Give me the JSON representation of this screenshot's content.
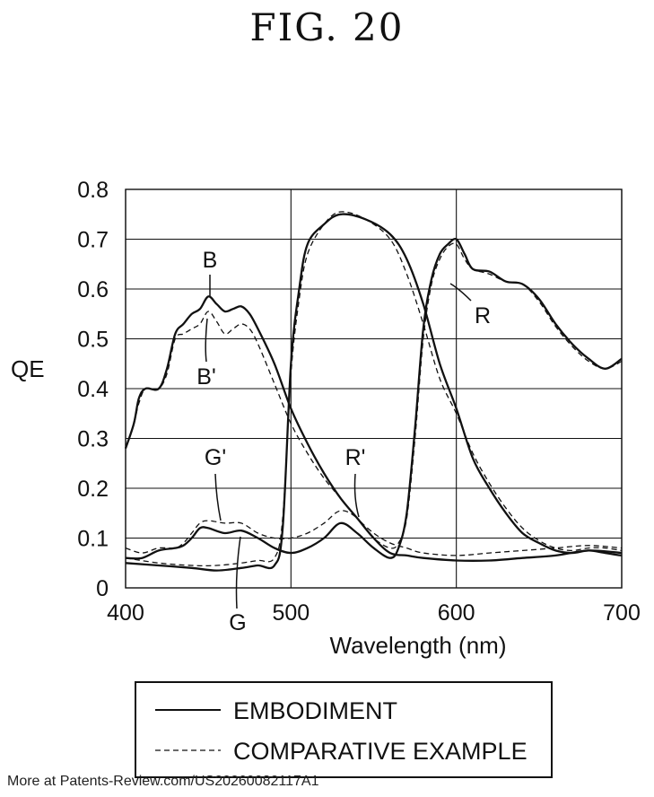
{
  "figure_title": "FIG. 20",
  "footer": "More at Patents-Review.com/US20260082117A1",
  "chart_data": {
    "type": "line",
    "title": "",
    "xlabel": "Wavelength (nm)",
    "ylabel": "QE",
    "xlim": [
      400,
      700
    ],
    "ylim": [
      0,
      0.8
    ],
    "x_ticks": [
      "400",
      "500",
      "600",
      "700"
    ],
    "y_ticks": [
      "0",
      "0.1",
      "0.2",
      "0.3",
      "0.4",
      "0.5",
      "0.6",
      "0.7",
      "0.8"
    ],
    "grid": true,
    "legend_position": "bottom",
    "legend": [
      {
        "label": "EMBODIMENT",
        "style": "solid"
      },
      {
        "label": "COMPARATIVE EXAMPLE",
        "style": "dashed"
      }
    ],
    "series": [
      {
        "label": "B",
        "style": "solid",
        "points": [
          [
            400,
            0.28
          ],
          [
            405,
            0.33
          ],
          [
            408,
            0.38
          ],
          [
            412,
            0.4
          ],
          [
            420,
            0.4
          ],
          [
            425,
            0.44
          ],
          [
            430,
            0.51
          ],
          [
            435,
            0.53
          ],
          [
            440,
            0.55
          ],
          [
            445,
            0.56
          ],
          [
            450,
            0.585
          ],
          [
            455,
            0.57
          ],
          [
            460,
            0.555
          ],
          [
            465,
            0.56
          ],
          [
            470,
            0.565
          ],
          [
            475,
            0.55
          ],
          [
            480,
            0.52
          ],
          [
            490,
            0.45
          ],
          [
            500,
            0.36
          ],
          [
            510,
            0.29
          ],
          [
            520,
            0.23
          ],
          [
            530,
            0.18
          ],
          [
            540,
            0.14
          ],
          [
            550,
            0.1
          ],
          [
            560,
            0.07
          ],
          [
            570,
            0.065
          ],
          [
            580,
            0.06
          ],
          [
            600,
            0.055
          ],
          [
            620,
            0.055
          ],
          [
            640,
            0.06
          ],
          [
            660,
            0.065
          ],
          [
            680,
            0.075
          ],
          [
            700,
            0.07
          ]
        ]
      },
      {
        "label": "B'",
        "style": "dashed",
        "points": [
          [
            400,
            0.28
          ],
          [
            405,
            0.33
          ],
          [
            408,
            0.37
          ],
          [
            412,
            0.4
          ],
          [
            420,
            0.4
          ],
          [
            425,
            0.43
          ],
          [
            430,
            0.5
          ],
          [
            435,
            0.51
          ],
          [
            440,
            0.52
          ],
          [
            445,
            0.53
          ],
          [
            450,
            0.555
          ],
          [
            455,
            0.535
          ],
          [
            460,
            0.51
          ],
          [
            465,
            0.52
          ],
          [
            470,
            0.53
          ],
          [
            475,
            0.52
          ],
          [
            480,
            0.49
          ],
          [
            490,
            0.41
          ],
          [
            500,
            0.33
          ],
          [
            510,
            0.27
          ],
          [
            520,
            0.22
          ],
          [
            530,
            0.18
          ],
          [
            540,
            0.14
          ],
          [
            550,
            0.11
          ],
          [
            560,
            0.09
          ],
          [
            570,
            0.08
          ],
          [
            580,
            0.07
          ],
          [
            600,
            0.065
          ],
          [
            620,
            0.07
          ],
          [
            640,
            0.075
          ],
          [
            660,
            0.08
          ],
          [
            680,
            0.085
          ],
          [
            700,
            0.08
          ]
        ]
      },
      {
        "label": "G",
        "style": "solid",
        "points": [
          [
            400,
            0.05
          ],
          [
            420,
            0.045
          ],
          [
            440,
            0.04
          ],
          [
            455,
            0.035
          ],
          [
            470,
            0.04
          ],
          [
            480,
            0.045
          ],
          [
            490,
            0.045
          ],
          [
            495,
            0.12
          ],
          [
            500,
            0.45
          ],
          [
            505,
            0.6
          ],
          [
            510,
            0.69
          ],
          [
            520,
            0.73
          ],
          [
            530,
            0.75
          ],
          [
            545,
            0.74
          ],
          [
            560,
            0.71
          ],
          [
            570,
            0.66
          ],
          [
            580,
            0.57
          ],
          [
            590,
            0.45
          ],
          [
            600,
            0.36
          ],
          [
            610,
            0.26
          ],
          [
            620,
            0.2
          ],
          [
            630,
            0.15
          ],
          [
            640,
            0.11
          ],
          [
            650,
            0.09
          ],
          [
            660,
            0.075
          ],
          [
            670,
            0.07
          ],
          [
            680,
            0.075
          ],
          [
            690,
            0.07
          ],
          [
            700,
            0.065
          ]
        ]
      },
      {
        "label": "G'",
        "style": "dashed",
        "points": [
          [
            400,
            0.06
          ],
          [
            420,
            0.05
          ],
          [
            440,
            0.045
          ],
          [
            455,
            0.045
          ],
          [
            470,
            0.05
          ],
          [
            480,
            0.055
          ],
          [
            490,
            0.06
          ],
          [
            495,
            0.14
          ],
          [
            500,
            0.43
          ],
          [
            505,
            0.58
          ],
          [
            510,
            0.67
          ],
          [
            520,
            0.73
          ],
          [
            530,
            0.755
          ],
          [
            545,
            0.74
          ],
          [
            560,
            0.7
          ],
          [
            570,
            0.63
          ],
          [
            580,
            0.53
          ],
          [
            590,
            0.42
          ],
          [
            600,
            0.35
          ],
          [
            610,
            0.27
          ],
          [
            620,
            0.21
          ],
          [
            630,
            0.16
          ],
          [
            640,
            0.12
          ],
          [
            650,
            0.095
          ],
          [
            660,
            0.08
          ],
          [
            670,
            0.075
          ],
          [
            680,
            0.08
          ],
          [
            690,
            0.08
          ],
          [
            700,
            0.075
          ]
        ]
      },
      {
        "label": "R",
        "style": "solid",
        "points": [
          [
            400,
            0.06
          ],
          [
            410,
            0.06
          ],
          [
            420,
            0.075
          ],
          [
            430,
            0.08
          ],
          [
            435,
            0.085
          ],
          [
            440,
            0.1
          ],
          [
            445,
            0.12
          ],
          [
            450,
            0.12
          ],
          [
            460,
            0.11
          ],
          [
            470,
            0.115
          ],
          [
            480,
            0.1
          ],
          [
            490,
            0.08
          ],
          [
            500,
            0.07
          ],
          [
            510,
            0.08
          ],
          [
            520,
            0.1
          ],
          [
            530,
            0.13
          ],
          [
            540,
            0.11
          ],
          [
            550,
            0.08
          ],
          [
            560,
            0.06
          ],
          [
            565,
            0.08
          ],
          [
            570,
            0.15
          ],
          [
            575,
            0.32
          ],
          [
            580,
            0.52
          ],
          [
            585,
            0.62
          ],
          [
            590,
            0.67
          ],
          [
            595,
            0.69
          ],
          [
            600,
            0.7
          ],
          [
            605,
            0.67
          ],
          [
            610,
            0.64
          ],
          [
            620,
            0.635
          ],
          [
            630,
            0.615
          ],
          [
            640,
            0.61
          ],
          [
            650,
            0.58
          ],
          [
            660,
            0.53
          ],
          [
            670,
            0.49
          ],
          [
            680,
            0.46
          ],
          [
            690,
            0.44
          ],
          [
            700,
            0.46
          ]
        ]
      },
      {
        "label": "R'",
        "style": "dashed",
        "points": [
          [
            400,
            0.08
          ],
          [
            410,
            0.07
          ],
          [
            420,
            0.08
          ],
          [
            430,
            0.08
          ],
          [
            435,
            0.09
          ],
          [
            440,
            0.11
          ],
          [
            445,
            0.13
          ],
          [
            450,
            0.135
          ],
          [
            460,
            0.13
          ],
          [
            470,
            0.13
          ],
          [
            480,
            0.11
          ],
          [
            490,
            0.1
          ],
          [
            500,
            0.1
          ],
          [
            510,
            0.11
          ],
          [
            520,
            0.13
          ],
          [
            530,
            0.155
          ],
          [
            540,
            0.14
          ],
          [
            550,
            0.1
          ],
          [
            560,
            0.08
          ],
          [
            565,
            0.09
          ],
          [
            570,
            0.14
          ],
          [
            575,
            0.3
          ],
          [
            580,
            0.5
          ],
          [
            585,
            0.61
          ],
          [
            590,
            0.66
          ],
          [
            595,
            0.685
          ],
          [
            600,
            0.69
          ],
          [
            605,
            0.66
          ],
          [
            610,
            0.64
          ],
          [
            620,
            0.63
          ],
          [
            630,
            0.615
          ],
          [
            640,
            0.61
          ],
          [
            650,
            0.575
          ],
          [
            660,
            0.525
          ],
          [
            670,
            0.485
          ],
          [
            680,
            0.455
          ],
          [
            690,
            0.44
          ],
          [
            700,
            0.455
          ]
        ]
      }
    ],
    "annotations": [
      "B",
      "B'",
      "G'",
      "G",
      "R'",
      "R"
    ]
  }
}
